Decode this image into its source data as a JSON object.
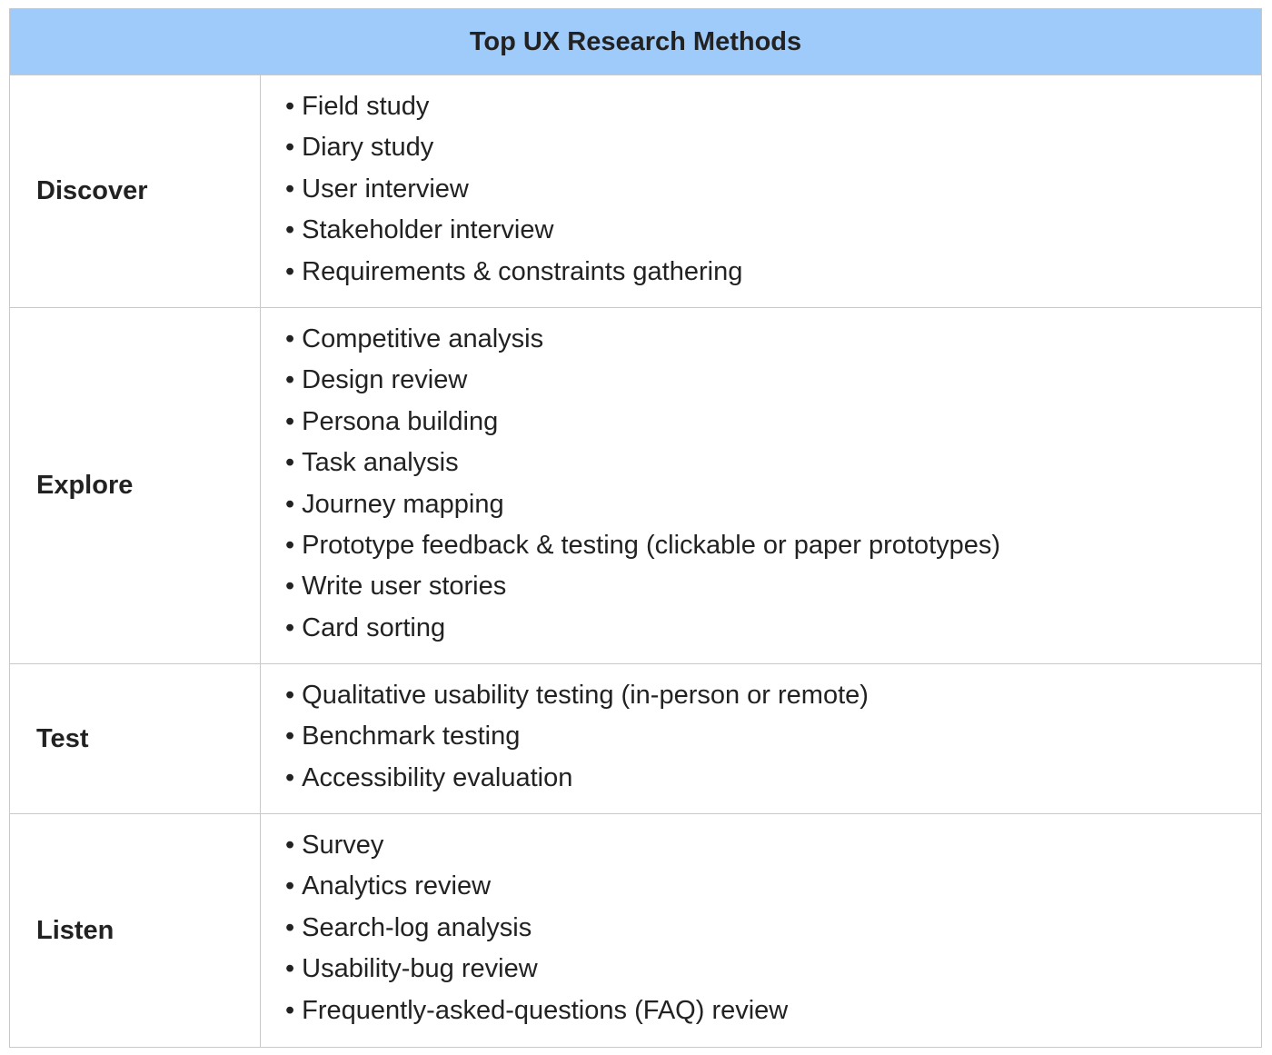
{
  "title": "Top UX Research Methods",
  "colors": {
    "header_background": "#9fcbfb",
    "border": "#c9c9c9",
    "text": "#222222"
  },
  "bullet": "•",
  "rows": [
    {
      "label": "Discover",
      "items": [
        "Field study",
        "Diary study",
        "User interview",
        "Stakeholder interview",
        "Requirements & constraints gathering"
      ]
    },
    {
      "label": "Explore",
      "items": [
        "Competitive analysis",
        "Design review",
        "Persona building",
        "Task analysis",
        "Journey mapping",
        "Prototype feedback & testing (clickable or paper prototypes)",
        "Write user stories",
        "Card sorting"
      ]
    },
    {
      "label": "Test",
      "items": [
        "Qualitative usability testing (in-person or remote)",
        "Benchmark testing",
        "Accessibility evaluation"
      ]
    },
    {
      "label": "Listen",
      "items": [
        "Survey",
        "Analytics review",
        "Search-log analysis",
        "Usability-bug review",
        "Frequently-asked-questions (FAQ) review"
      ]
    }
  ]
}
